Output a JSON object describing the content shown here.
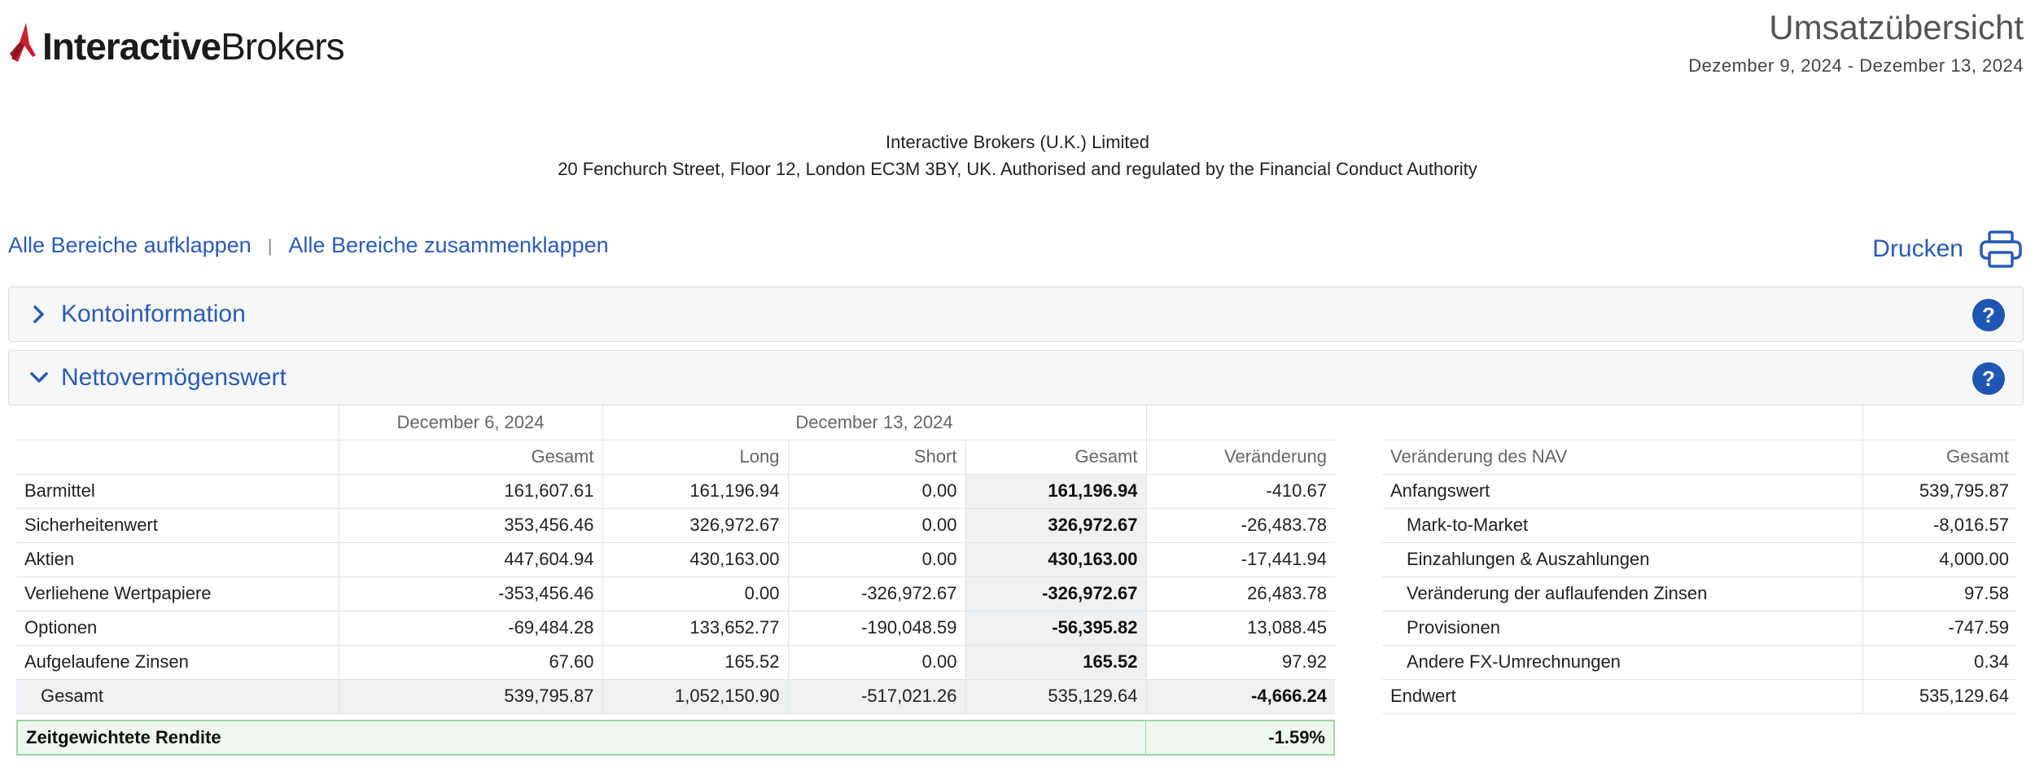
{
  "brand": {
    "name_bold": "Interactive",
    "name_regular": "Brokers",
    "accent_color": "#c8202f"
  },
  "report": {
    "title": "Umsatzübersicht",
    "dates": "Dezember 9, 2024 - Dezember 13, 2024"
  },
  "company": {
    "line1": "Interactive Brokers (U.K.) Limited",
    "line2": "20 Fenchurch Street, Floor 12, London EC3M 3BY, UK. Authorised and regulated by the Financial Conduct Authority"
  },
  "toolbar": {
    "expand_all": "Alle Bereiche aufklappen",
    "separator": "|",
    "collapse_all": "Alle Bereiche zusammenklappen",
    "print": "Drucken"
  },
  "sections": [
    {
      "title": "Kontoinformation",
      "expanded": false,
      "help": "?"
    },
    {
      "title": "Nettovermögenswert",
      "expanded": true,
      "help": "?"
    }
  ],
  "nav_table": {
    "group_headers": {
      "prev_date": "December 6, 2024",
      "curr_date": "December 13, 2024"
    },
    "columns": [
      "Gesamt",
      "Long",
      "Short",
      "Gesamt",
      "Veränderung"
    ],
    "rows": [
      {
        "label": "Barmittel",
        "prev_total": "161,607.61",
        "long": "161,196.94",
        "short": "0.00",
        "total": "161,196.94",
        "change": "-410.67"
      },
      {
        "label": "Sicherheitenwert",
        "prev_total": "353,456.46",
        "long": "326,972.67",
        "short": "0.00",
        "total": "326,972.67",
        "change": "-26,483.78"
      },
      {
        "label": "Aktien",
        "prev_total": "447,604.94",
        "long": "430,163.00",
        "short": "0.00",
        "total": "430,163.00",
        "change": "-17,441.94"
      },
      {
        "label": "Verliehene Wertpapiere",
        "prev_total": "-353,456.46",
        "long": "0.00",
        "short": "-326,972.67",
        "total": "-326,972.67",
        "change": "26,483.78"
      },
      {
        "label": "Optionen",
        "prev_total": "-69,484.28",
        "long": "133,652.77",
        "short": "-190,048.59",
        "total": "-56,395.82",
        "change": "13,088.45"
      },
      {
        "label": "Aufgelaufene Zinsen",
        "prev_total": "67.60",
        "long": "165.52",
        "short": "0.00",
        "total": "165.52",
        "change": "97.92"
      }
    ],
    "total_row": {
      "label": "Gesamt",
      "prev_total": "539,795.87",
      "long": "1,052,150.90",
      "short": "-517,021.26",
      "total": "535,129.64",
      "change": "-4,666.24"
    },
    "twr": {
      "label": "Zeitgewichtete Rendite",
      "value": "-1.59%"
    }
  },
  "nav_change_table": {
    "header_label": "Veränderung des NAV",
    "header_value": "Gesamt",
    "rows": [
      {
        "label": "Anfangswert",
        "value": "539,795.87",
        "indent": false
      },
      {
        "label": "Mark-to-Market",
        "value": "-8,016.57",
        "indent": true
      },
      {
        "label": "Einzahlungen & Auszahlungen",
        "value": "4,000.00",
        "indent": true
      },
      {
        "label": "Veränderung der auflaufenden Zinsen",
        "value": "97.58",
        "indent": true
      },
      {
        "label": "Provisionen",
        "value": "-747.59",
        "indent": true
      },
      {
        "label": "Andere FX-Umrechnungen",
        "value": "0.34",
        "indent": true
      },
      {
        "label": "Endwert",
        "value": "535,129.64",
        "indent": false
      }
    ]
  },
  "icons": {
    "logo": "ib-logo-icon",
    "print": "printer-icon",
    "chevron_right": "chevron-right-icon",
    "chevron_down": "chevron-down-icon",
    "help": "help-icon"
  }
}
